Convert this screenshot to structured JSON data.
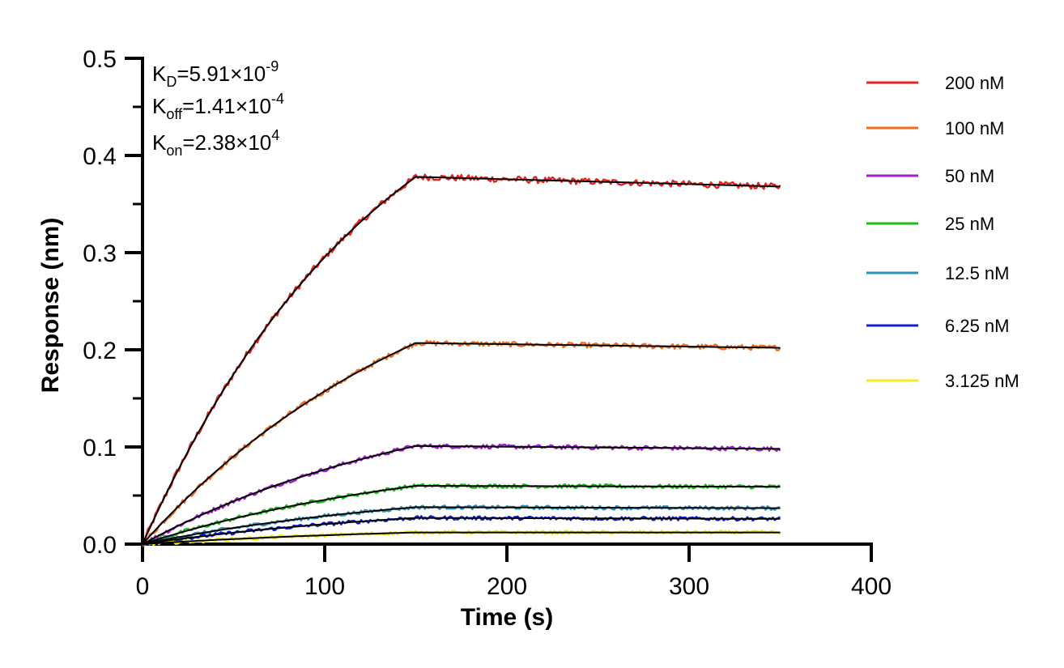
{
  "chart_data": {
    "type": "line",
    "title": "",
    "xlabel": "Time (s)",
    "ylabel": "Response (nm)",
    "xlim": [
      0,
      400
    ],
    "ylim": [
      0,
      0.5
    ],
    "x_ticks": [
      "0",
      "100",
      "200",
      "300",
      "400"
    ],
    "y_ticks": [
      "0.0",
      "0.1",
      "0.2",
      "0.3",
      "0.4",
      "0.5"
    ],
    "grid": false,
    "legend_position": "right",
    "kinetics": {
      "kd": {
        "label": "K",
        "sub": "D",
        "text": "=5.91×10",
        "sup": "-9"
      },
      "koff": {
        "label": "K",
        "sub": "off",
        "text": "=1.41×10",
        "sup": "-4"
      },
      "kon": {
        "label": "K",
        "sub": "on",
        "text": "=2.38×10",
        "sup": "4"
      }
    },
    "series": [
      {
        "name": "200 nM",
        "color": "#e8231d",
        "plateau": 0.378,
        "end_value": 0.368
      },
      {
        "name": "100 nM",
        "color": "#f26d21",
        "plateau": 0.207,
        "end_value": 0.202
      },
      {
        "name": "50 nM",
        "color": "#a020d0",
        "plateau": 0.101,
        "end_value": 0.098
      },
      {
        "name": "25 nM",
        "color": "#1cbc1c",
        "plateau": 0.06,
        "end_value": 0.059
      },
      {
        "name": "12.5 nM",
        "color": "#2a93b5",
        "plateau": 0.038,
        "end_value": 0.037
      },
      {
        "name": "6.25 nM",
        "color": "#1020d0",
        "plateau": 0.027,
        "end_value": 0.026
      },
      {
        "name": "3.125 nM",
        "color": "#f2ec1c",
        "plateau": 0.012,
        "end_value": 0.012
      }
    ],
    "association_end": 150,
    "dissociation_end": 350,
    "fit_color": "#000000"
  }
}
